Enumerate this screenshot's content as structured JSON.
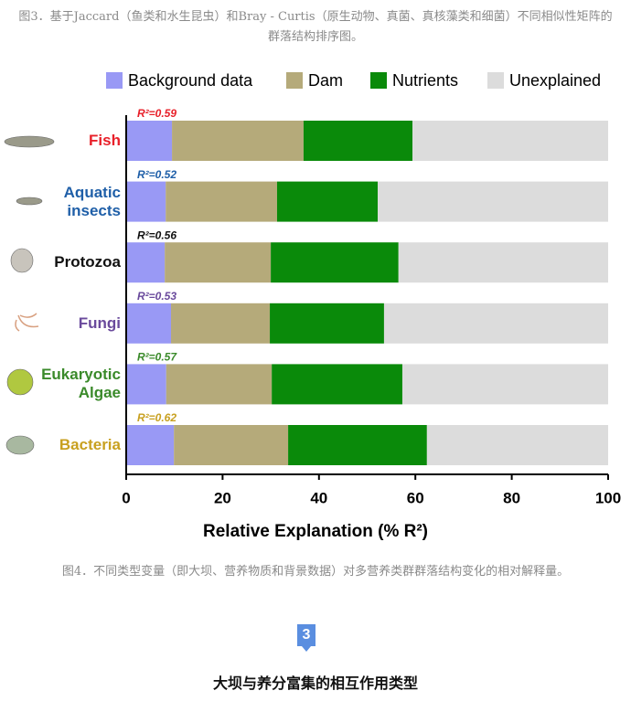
{
  "caption_top": "图3．基于Jaccard（鱼类和水生昆虫）和Bray - Curtis（原生动物、真菌、真核藻类和细菌）不同相似性矩阵的群落结构排序图。",
  "chart_data": {
    "type": "stacked-barh",
    "categories": [
      "Fish",
      "Aquatic insects",
      "Protozoa",
      "Fungi",
      "Eukaryotic Algae",
      "Bacteria"
    ],
    "category_colors": [
      "#e8202a",
      "#1f5fa8",
      "#111111",
      "#6a4a9c",
      "#3a8a2a",
      "#c8a020"
    ],
    "annotations": [
      "R²=0.59",
      "R²=0.52",
      "R²=0.56",
      "R²=0.53",
      "R²=0.57",
      "R²=0.62"
    ],
    "annotation_colors": [
      "#e8202a",
      "#1f5fa8",
      "#111111",
      "#6a4a9c",
      "#3a8a2a",
      "#c8a020"
    ],
    "series": [
      {
        "name": "Background data",
        "color": "#9999f5",
        "values": [
          9.5,
          8.2,
          8.0,
          9.3,
          8.3,
          9.9
        ]
      },
      {
        "name": "Dam",
        "color": "#b5aa7a",
        "values": [
          27.3,
          23.1,
          22.0,
          20.5,
          21.9,
          23.7
        ]
      },
      {
        "name": "Nutrients",
        "color": "#0a8a0a",
        "values": [
          22.6,
          20.9,
          26.5,
          23.7,
          27.1,
          28.8
        ]
      },
      {
        "name": "Unexplained",
        "color": "#dcdcdc",
        "values": [
          40.6,
          47.8,
          43.5,
          46.5,
          42.7,
          37.6
        ]
      }
    ],
    "xlabel": "Relative Explanation (% R²)",
    "xlim": [
      0,
      100
    ],
    "xticks": [
      0,
      20,
      40,
      60,
      80,
      100
    ]
  },
  "caption_bottom": "图4．不同类型变量（即大坝、营养物质和背景数据）对多营养类群群落结构变化的相对解释量。",
  "section": {
    "number": "3",
    "title": "大坝与养分富集的相互作用类型"
  }
}
